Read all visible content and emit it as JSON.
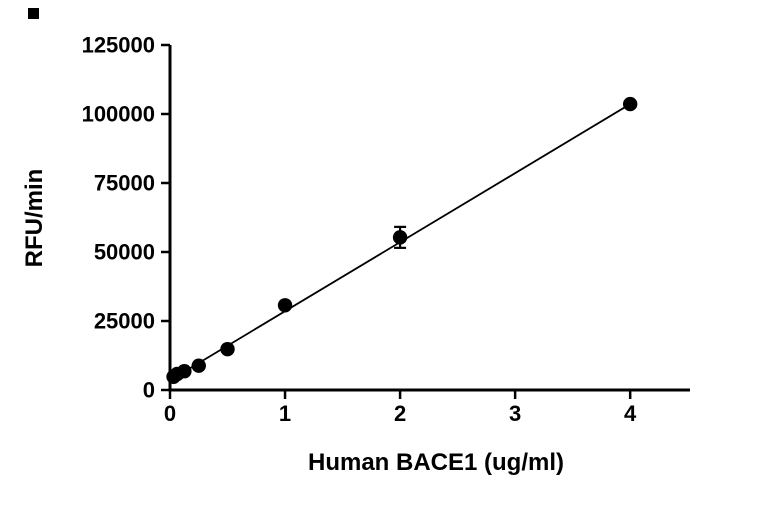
{
  "chart_data": {
    "type": "scatter",
    "title": "",
    "xlabel": "Human BACE1 (ug/ml)",
    "ylabel": "RFU/min",
    "xlim": [
      0,
      4.52
    ],
    "ylim": [
      0,
      125000
    ],
    "x_ticks": [
      0,
      1,
      2,
      3,
      4
    ],
    "y_ticks": [
      0,
      25000,
      50000,
      75000,
      100000,
      125000
    ],
    "grid": "off",
    "legend": "none",
    "marker_color": "#000000",
    "line_color": "#000000",
    "points": [
      {
        "x": 0.031,
        "y": 4800,
        "err": 300
      },
      {
        "x": 0.063,
        "y": 5800,
        "err": 300
      },
      {
        "x": 0.125,
        "y": 6800,
        "err": 300
      },
      {
        "x": 0.25,
        "y": 8800,
        "err": 400
      },
      {
        "x": 0.5,
        "y": 14800,
        "err": 500
      },
      {
        "x": 1.0,
        "y": 30700,
        "err": 700
      },
      {
        "x": 2.0,
        "y": 55300,
        "err": 3800
      },
      {
        "x": 4.0,
        "y": 103600,
        "err": 900
      }
    ],
    "fit_line": {
      "x1": 0.031,
      "y1": 4300,
      "x2": 4.0,
      "y2": 103600
    }
  }
}
